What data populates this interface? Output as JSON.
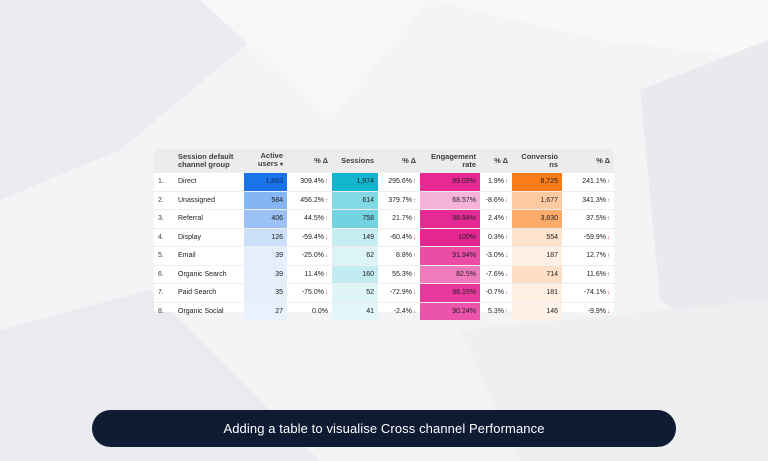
{
  "table": {
    "headers": {
      "channel": "Session default channel group",
      "active_users": "Active users",
      "sort_indicator": "▾",
      "users_delta": "% Δ",
      "sessions": "Sessions",
      "sessions_delta": "% Δ",
      "engagement": "Engagement rate",
      "engagement_delta": "% Δ",
      "conversions": "Conversio ns",
      "conversions_delta": "% Δ"
    },
    "rows": [
      {
        "idx": "1.",
        "channel": "Direct",
        "users": "1,863",
        "users_delta": "309.4%",
        "users_dir": "up",
        "sessions": "1,974",
        "sessions_delta": "295.6%",
        "sessions_dir": "up",
        "engagement": "99.09%",
        "engagement_delta": "1.9%",
        "engagement_dir": "up",
        "conversions": "8,725",
        "conversions_delta": "241.1%",
        "conversions_dir": "up"
      },
      {
        "idx": "2.",
        "channel": "Unassigned",
        "users": "584",
        "users_delta": "456.2%",
        "users_dir": "up",
        "sessions": "614",
        "sessions_delta": "379.7%",
        "sessions_dir": "up",
        "engagement": "68.57%",
        "engagement_delta": "-8.6%",
        "engagement_dir": "down",
        "conversions": "1,677",
        "conversions_delta": "341.3%",
        "conversions_dir": "up"
      },
      {
        "idx": "3.",
        "channel": "Referral",
        "users": "406",
        "users_delta": "44.5%",
        "users_dir": "up",
        "sessions": "758",
        "sessions_delta": "21.7%",
        "sessions_dir": "up",
        "engagement": "98.94%",
        "engagement_delta": "2.4%",
        "engagement_dir": "up",
        "conversions": "3,830",
        "conversions_delta": "37.5%",
        "conversions_dir": "up"
      },
      {
        "idx": "4.",
        "channel": "Display",
        "users": "126",
        "users_delta": "-59.4%",
        "users_dir": "down",
        "sessions": "149",
        "sessions_delta": "-60.4%",
        "sessions_dir": "down",
        "engagement": "100%",
        "engagement_delta": "0.3%",
        "engagement_dir": "up",
        "conversions": "554",
        "conversions_delta": "-59.9%",
        "conversions_dir": "down"
      },
      {
        "idx": "5.",
        "channel": "Email",
        "users": "39",
        "users_delta": "-25.0%",
        "users_dir": "down",
        "sessions": "62",
        "sessions_delta": "8.8%",
        "sessions_dir": "up",
        "engagement": "91.94%",
        "engagement_delta": "-3.0%",
        "engagement_dir": "down",
        "conversions": "187",
        "conversions_delta": "12.7%",
        "conversions_dir": "up"
      },
      {
        "idx": "6.",
        "channel": "Organic Search",
        "users": "39",
        "users_delta": "11.4%",
        "users_dir": "up",
        "sessions": "160",
        "sessions_delta": "55.3%",
        "sessions_dir": "up",
        "engagement": "82.5%",
        "engagement_delta": "-7.6%",
        "engagement_dir": "down",
        "conversions": "714",
        "conversions_delta": "11.6%",
        "conversions_dir": "up"
      },
      {
        "idx": "7.",
        "channel": "Paid Search",
        "users": "35",
        "users_delta": "-75.0%",
        "users_dir": "down",
        "sessions": "52",
        "sessions_delta": "-72.9%",
        "sessions_dir": "down",
        "engagement": "96.15%",
        "engagement_delta": "-0.7%",
        "engagement_dir": "down",
        "conversions": "181",
        "conversions_delta": "-74.1%",
        "conversions_dir": "down"
      },
      {
        "idx": "8.",
        "channel": "Organic Social",
        "users": "27",
        "users_delta": "0.0%",
        "users_dir": "none",
        "sessions": "41",
        "sessions_delta": "-2.4%",
        "sessions_dir": "down",
        "engagement": "90.24%",
        "engagement_delta": "5.3%",
        "engagement_dir": "up",
        "conversions": "146",
        "conversions_delta": "-9.9%",
        "conversions_dir": "down"
      }
    ],
    "heat_colors": {
      "users": "#1a73e8",
      "sessions": "#12b5cb",
      "engagement": "#e52592",
      "conversions": "#fa7b17",
      "up_arrow": "#188038",
      "down_arrow": "#d93025"
    }
  },
  "caption": "Adding a table to visualise Cross channel Performance"
}
